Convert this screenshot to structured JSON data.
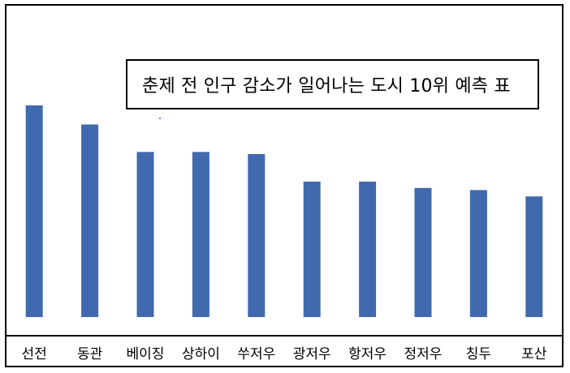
{
  "chart_data": {
    "type": "bar",
    "title": "춘제 전 인구 감소가 일어나는 도시 10위 예측 표",
    "categories": [
      "선전",
      "동관",
      "베이징",
      "상하이",
      "쑤저우",
      "광저우",
      "항저우",
      "정저우",
      "칭두",
      "포산"
    ],
    "values": [
      100,
      91,
      78,
      78,
      77,
      64,
      64,
      61,
      60,
      57
    ],
    "ylim": [
      0,
      100
    ],
    "xlabel": "",
    "ylabel": "",
    "grid": false,
    "legend": "none",
    "colors": {
      "bar": "#4169AD",
      "axis": "#000000",
      "frame": "#000000"
    }
  }
}
